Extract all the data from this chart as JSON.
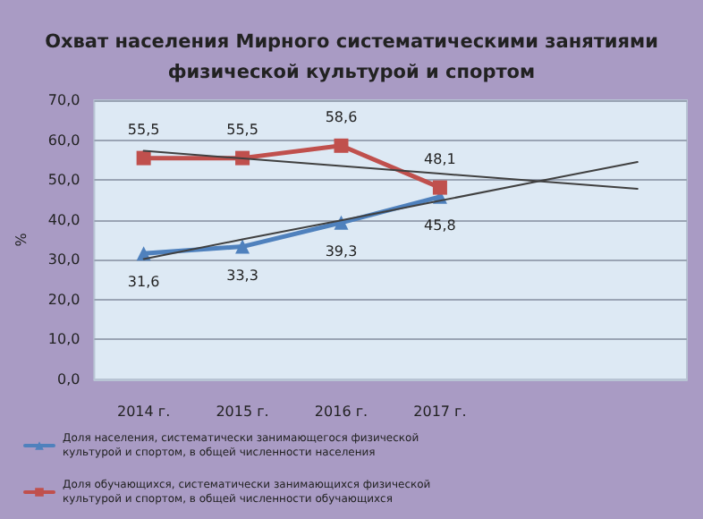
{
  "chart_data": {
    "type": "line",
    "title": "Охват населения Мирного систематическими занятиями\nфизической культурой и спортом",
    "ylabel": "%",
    "categories": [
      "2014 г.",
      "2015 г.",
      "2016 г.",
      "2017 г.",
      null,
      null
    ],
    "series": [
      {
        "name": "Доля населения, систематически занимающегося физической культурой и спортом, в общей численности населения",
        "color": "#4f81bd",
        "marker": "triangle",
        "values": [
          31.6,
          33.3,
          39.3,
          45.8,
          null,
          null
        ],
        "value_labels": [
          "31,6",
          "33,3",
          "39,3",
          "45,8",
          null,
          null
        ]
      },
      {
        "name": "Доля обучающихся, систематически занимающихся физической культурой и спортом, в общей численности обучающихся",
        "color": "#c0504d",
        "marker": "square",
        "values": [
          55.5,
          55.5,
          58.6,
          48.1,
          null,
          null
        ],
        "value_labels": [
          "55,5",
          "55,5",
          "58,6",
          "48,1",
          null,
          null
        ]
      },
      {
        "type": "line",
        "color": "#404040",
        "marker": "none",
        "values": [
          30.2,
          35.1,
          39.9,
          44.8,
          49.7,
          54.5
        ]
      },
      {
        "type": "line",
        "color": "#404040",
        "marker": "none",
        "values": [
          57.3,
          55.4,
          53.5,
          51.6,
          49.7,
          47.8
        ]
      }
    ],
    "ylim": [
      0,
      70
    ],
    "yticks": [
      {
        "value": 0,
        "label": "0,0"
      },
      {
        "value": 10,
        "label": "10,0"
      },
      {
        "value": 20,
        "label": "20,0"
      },
      {
        "value": 30,
        "label": "30,0"
      },
      {
        "value": 40,
        "label": "40,0"
      },
      {
        "value": 50,
        "label": "50,0"
      },
      {
        "value": 60,
        "label": "60,0"
      },
      {
        "value": 70,
        "label": "70,0"
      }
    ],
    "grid": "y",
    "legend": "bottom"
  }
}
